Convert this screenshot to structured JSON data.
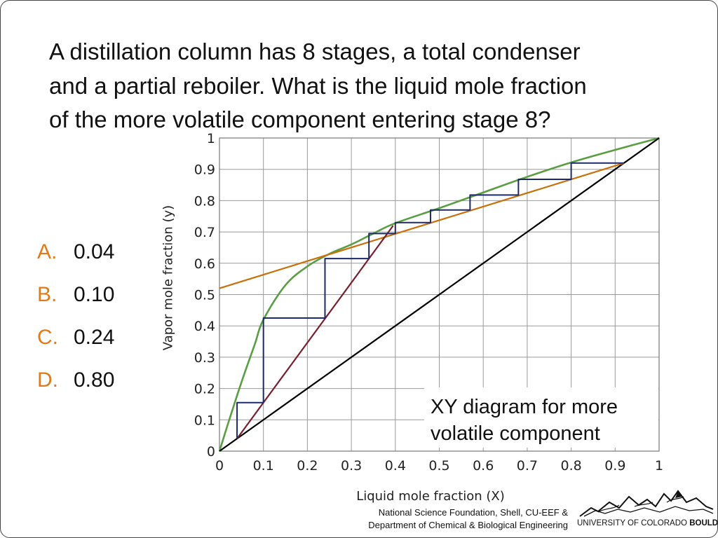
{
  "question": {
    "line1": "A distillation column has 8 stages, a total condenser",
    "line2": "and a partial reboiler.  What is the liquid mole fraction",
    "line3": "of the more volatile component entering stage 8?"
  },
  "choices": [
    {
      "letter": "A.",
      "value": "0.04"
    },
    {
      "letter": "B.",
      "value": "0.10"
    },
    {
      "letter": "C.",
      "value": "0.24"
    },
    {
      "letter": "D.",
      "value": "0.80"
    }
  ],
  "credits": {
    "line1": "National Science Foundation, Shell, CU-EEF &",
    "line2": "Department of Chemical & Biological Engineering",
    "logo_text_regular": "UNIVERSITY OF COLORADO ",
    "logo_text_bold": "BOULDER"
  },
  "colors": {
    "answer_letter": "#e07a1a",
    "equilibrium_curve": "#5a9e44",
    "operating_line_top": "#c8700a",
    "operating_line_bottom": "#7a1f2e",
    "stages": "#1b2a6b",
    "diagonal": "#000000",
    "grid": "#9a9a9a"
  },
  "chart_data": {
    "type": "line",
    "caption_line1": "XY diagram for more",
    "caption_line2": "volatile component",
    "xlabel": "Liquid mole fraction (X)",
    "ylabel": "Vapor mole fraction (y)",
    "xlim": [
      0,
      1
    ],
    "ylim": [
      0,
      1
    ],
    "xticks": [
      "0",
      "0.1",
      "0.2",
      "0.3",
      "0.4",
      "0.5",
      "0.6",
      "0.7",
      "0.8",
      "0.9",
      "1"
    ],
    "yticks": [
      "0",
      "0.1",
      "0.2",
      "0.3",
      "0.4",
      "0.5",
      "0.6",
      "0.7",
      "0.8",
      "0.9",
      "1"
    ],
    "grid": true,
    "series": [
      {
        "role": "equilibrium",
        "x": [
          0,
          0.02,
          0.05,
          0.08,
          0.1,
          0.15,
          0.2,
          0.25,
          0.3,
          0.35,
          0.4,
          0.5,
          0.6,
          0.7,
          0.8,
          0.9,
          1.0
        ],
        "y": [
          0,
          0.09,
          0.22,
          0.34,
          0.42,
          0.53,
          0.59,
          0.63,
          0.66,
          0.695,
          0.728,
          0.776,
          0.826,
          0.876,
          0.922,
          0.962,
          1.0
        ]
      },
      {
        "role": "y_equals_x",
        "x": [
          0,
          1
        ],
        "y": [
          0,
          1
        ]
      },
      {
        "role": "rectifying_operating_line",
        "x": [
          0,
          0.92
        ],
        "y": [
          0.52,
          0.92
        ]
      },
      {
        "role": "stripping_operating_line",
        "x": [
          0.04,
          0.395
        ],
        "y": [
          0.04,
          0.72
        ]
      },
      {
        "role": "stage_steps",
        "x": [
          0.92,
          0.8,
          0.8,
          0.68,
          0.68,
          0.57,
          0.57,
          0.48,
          0.48,
          0.4,
          0.4,
          0.34,
          0.34,
          0.24,
          0.24,
          0.1,
          0.1,
          0.04,
          0.04
        ],
        "y": [
          0.92,
          0.92,
          0.868,
          0.868,
          0.818,
          0.818,
          0.77,
          0.77,
          0.73,
          0.73,
          0.695,
          0.695,
          0.615,
          0.615,
          0.425,
          0.425,
          0.155,
          0.155,
          0.04
        ]
      }
    ]
  }
}
